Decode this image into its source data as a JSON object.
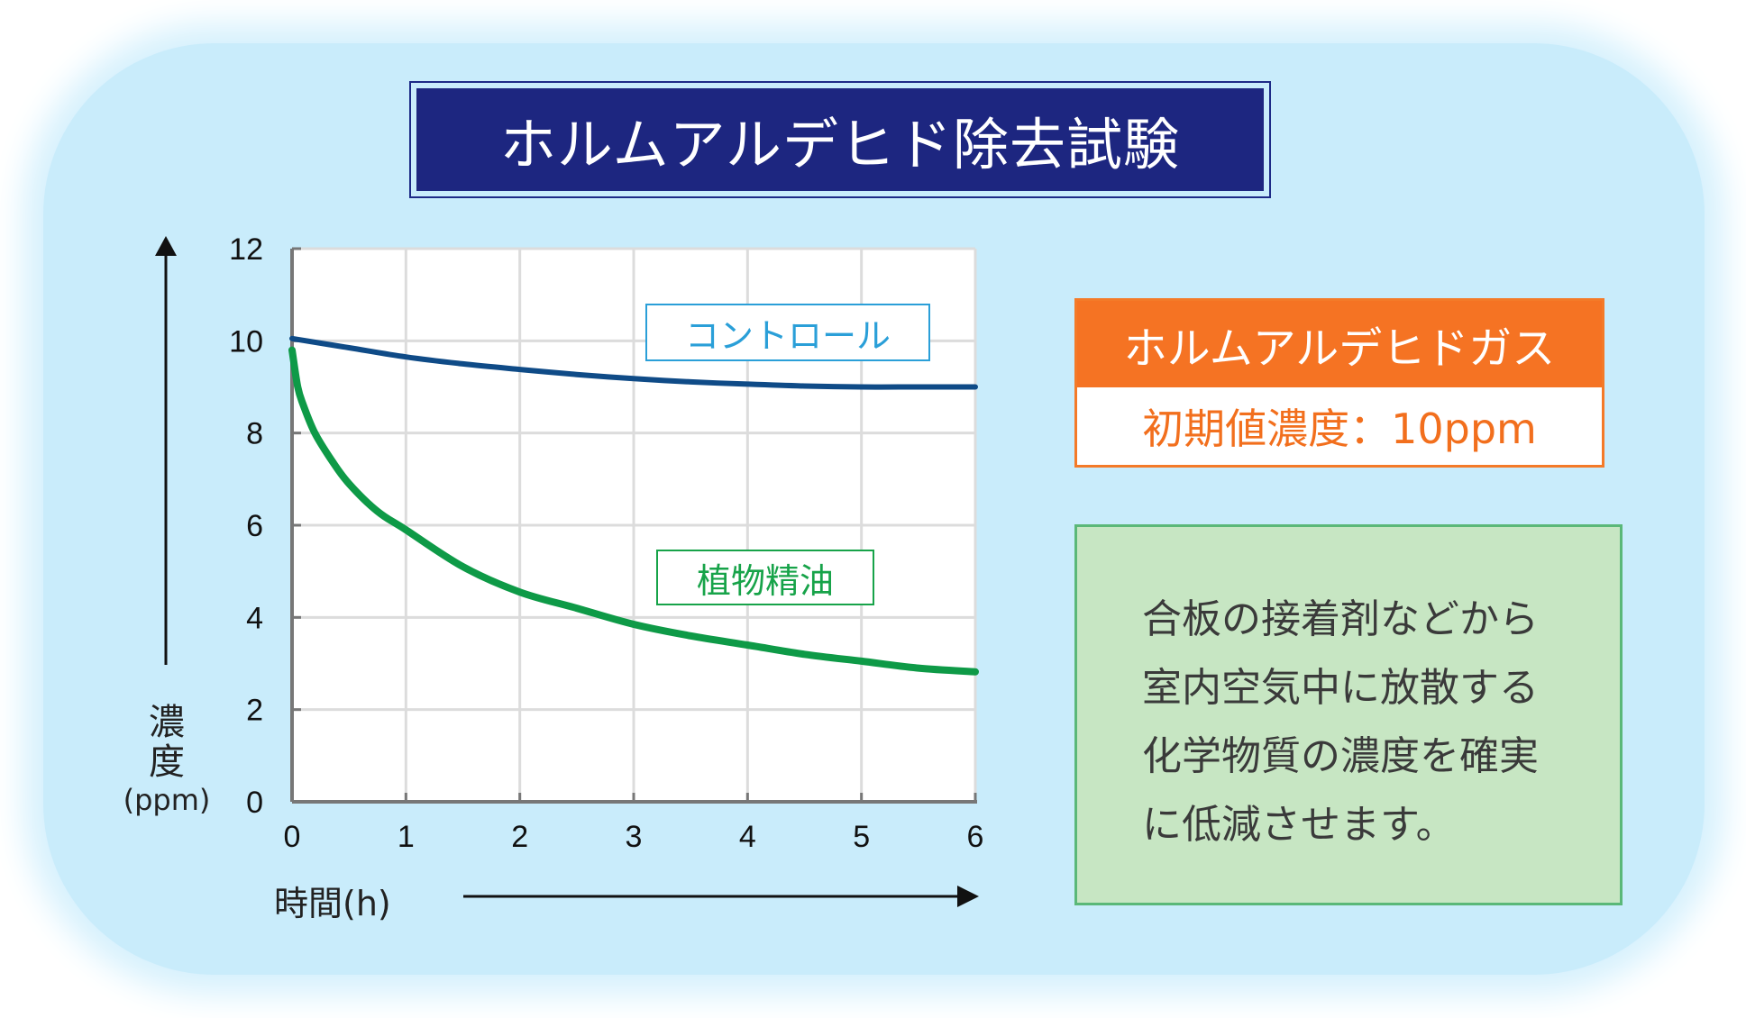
{
  "title": "ホルムアルデヒド除去試験",
  "gas_box": {
    "heading": "ホルムアルデヒドガス",
    "initial": "初期値濃度：10ppm"
  },
  "description": [
    "合板の接着剤などから",
    "室内空気中に放散する",
    "化学物質の濃度を確実",
    "に低減させます。"
  ],
  "colors": {
    "control": "#0f4b87",
    "oil": "#0e9a47",
    "title_bg": "#1d2680",
    "gas_accent": "#f57323",
    "panel_bg": "#c9ecfb"
  },
  "chart_data": {
    "type": "line",
    "ylabel_lines": [
      "濃",
      "度"
    ],
    "ylabel_unit": "(ppm)",
    "xlabel": "時間(h)",
    "xlim": [
      0,
      6
    ],
    "ylim": [
      0,
      12
    ],
    "x_ticks": [
      "0",
      "1",
      "2",
      "3",
      "4",
      "5",
      "6"
    ],
    "y_ticks": [
      "0",
      "2",
      "4",
      "6",
      "8",
      "10",
      "12"
    ],
    "grid": true,
    "series": [
      {
        "name": "コントロール",
        "color": "#0f4b87",
        "x": [
          0,
          0.5,
          1,
          1.5,
          2,
          2.5,
          3,
          3.5,
          4,
          4.5,
          5,
          5.5,
          6
        ],
        "y": [
          10.05,
          9.85,
          9.65,
          9.5,
          9.38,
          9.27,
          9.18,
          9.11,
          9.06,
          9.02,
          9.0,
          9.0,
          9.0
        ]
      },
      {
        "name": "植物精油",
        "color": "#0e9a47",
        "x": [
          0,
          0.05,
          0.1,
          0.2,
          0.35,
          0.5,
          0.75,
          1,
          1.5,
          2,
          2.5,
          3,
          3.5,
          4,
          4.5,
          5,
          5.5,
          6
        ],
        "y": [
          9.8,
          9.0,
          8.6,
          8.0,
          7.4,
          6.9,
          6.3,
          5.9,
          5.1,
          4.55,
          4.2,
          3.85,
          3.6,
          3.4,
          3.2,
          3.05,
          2.9,
          2.82
        ]
      }
    ]
  }
}
